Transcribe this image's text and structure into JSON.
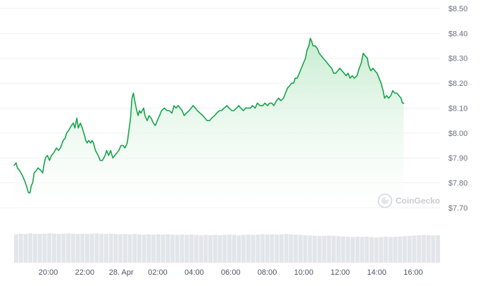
{
  "colors": {
    "line": "#16a34a",
    "area_top": "#c4ebcd",
    "area_bottom": "#ffffff",
    "volume": "#e2e5e9",
    "watermark": "#d3d6db"
  },
  "watermark": {
    "text": "CoinGecko",
    "icon": "coingecko-logo-icon"
  },
  "chart_data": {
    "type": "area",
    "x_format": "hours since start of the 20:00 tick (27 Apr)",
    "ylim": [
      7.68,
      8.5
    ],
    "y_ticks": [
      {
        "value": 8.5,
        "label": "$8.50"
      },
      {
        "value": 8.4,
        "label": "$8.40"
      },
      {
        "value": 8.3,
        "label": "$8.30"
      },
      {
        "value": 8.2,
        "label": "$8.20"
      },
      {
        "value": 8.1,
        "label": "$8.10"
      },
      {
        "value": 8.0,
        "label": "$8.00"
      },
      {
        "value": 7.9,
        "label": "$7.90"
      },
      {
        "value": 7.8,
        "label": "$7.80"
      },
      {
        "value": 7.7,
        "label": "$7.70"
      }
    ],
    "x_ticks": [
      {
        "value": 0,
        "label": "20:00"
      },
      {
        "value": 2,
        "label": "22:00"
      },
      {
        "value": 4,
        "label": "28. Apr"
      },
      {
        "value": 6,
        "label": "02:00"
      },
      {
        "value": 8,
        "label": "04:00"
      },
      {
        "value": 10,
        "label": "06:00"
      },
      {
        "value": 12,
        "label": "08:00"
      },
      {
        "value": 14,
        "label": "10:00"
      },
      {
        "value": 16,
        "label": "12:00"
      },
      {
        "value": 18,
        "label": "14:00"
      },
      {
        "value": 20,
        "label": "16:00"
      }
    ],
    "xlim": [
      -1.87,
      21.5
    ],
    "series": [
      {
        "points": [
          [
            -1.87,
            7.87
          ],
          [
            -1.76,
            7.88
          ],
          [
            -1.69,
            7.86
          ],
          [
            -1.57,
            7.85
          ],
          [
            -1.42,
            7.83
          ],
          [
            -1.3,
            7.81
          ],
          [
            -1.2,
            7.79
          ],
          [
            -1.08,
            7.76
          ],
          [
            -1.0,
            7.76
          ],
          [
            -0.92,
            7.79
          ],
          [
            -0.85,
            7.8
          ],
          [
            -0.77,
            7.84
          ],
          [
            -0.64,
            7.85
          ],
          [
            -0.56,
            7.86
          ],
          [
            -0.41,
            7.85
          ],
          [
            -0.3,
            7.84
          ],
          [
            -0.24,
            7.87
          ],
          [
            -0.15,
            7.9
          ],
          [
            -0.04,
            7.91
          ],
          [
            0.07,
            7.89
          ],
          [
            0.18,
            7.91
          ],
          [
            0.3,
            7.92
          ],
          [
            0.45,
            7.94
          ],
          [
            0.56,
            7.93
          ],
          [
            0.67,
            7.94
          ],
          [
            0.82,
            7.97
          ],
          [
            0.93,
            7.98
          ],
          [
            1.01,
            8.0
          ],
          [
            1.12,
            8.01
          ],
          [
            1.27,
            8.03
          ],
          [
            1.38,
            8.04
          ],
          [
            1.46,
            8.02
          ],
          [
            1.57,
            8.06
          ],
          [
            1.65,
            8.02
          ],
          [
            1.76,
            8.04
          ],
          [
            1.87,
            8.02
          ],
          [
            1.99,
            7.99
          ],
          [
            2.06,
            7.97
          ],
          [
            2.14,
            7.96
          ],
          [
            2.21,
            7.97
          ],
          [
            2.33,
            7.96
          ],
          [
            2.4,
            7.97
          ],
          [
            2.48,
            7.96
          ],
          [
            2.59,
            7.93
          ],
          [
            2.74,
            7.91
          ],
          [
            2.85,
            7.89
          ],
          [
            2.97,
            7.89
          ],
          [
            3.12,
            7.91
          ],
          [
            3.2,
            7.93
          ],
          [
            3.31,
            7.91
          ],
          [
            3.42,
            7.93
          ],
          [
            3.54,
            7.9
          ],
          [
            3.65,
            7.91
          ],
          [
            3.76,
            7.92
          ],
          [
            3.87,
            7.93
          ],
          [
            3.99,
            7.95
          ],
          [
            4.1,
            7.95
          ],
          [
            4.21,
            7.94
          ],
          [
            4.33,
            7.96
          ],
          [
            4.44,
            8.02
          ],
          [
            4.51,
            8.06
          ],
          [
            4.59,
            8.14
          ],
          [
            4.67,
            8.16
          ],
          [
            4.74,
            8.13
          ],
          [
            4.85,
            8.09
          ],
          [
            4.93,
            8.07
          ],
          [
            5.0,
            8.09
          ],
          [
            5.08,
            8.08
          ],
          [
            5.15,
            8.09
          ],
          [
            5.23,
            8.1
          ],
          [
            5.3,
            8.07
          ],
          [
            5.42,
            8.05
          ],
          [
            5.53,
            8.07
          ],
          [
            5.64,
            8.06
          ],
          [
            5.76,
            8.04
          ],
          [
            5.87,
            8.03
          ],
          [
            5.98,
            8.05
          ],
          [
            6.1,
            8.07
          ],
          [
            6.21,
            8.09
          ],
          [
            6.36,
            8.1
          ],
          [
            6.51,
            8.09
          ],
          [
            6.63,
            8.09
          ],
          [
            6.78,
            8.08
          ],
          [
            6.89,
            8.11
          ],
          [
            7.0,
            8.1
          ],
          [
            7.12,
            8.11
          ],
          [
            7.23,
            8.1
          ],
          [
            7.34,
            8.09
          ],
          [
            7.45,
            8.07
          ],
          [
            7.57,
            8.08
          ],
          [
            7.72,
            8.09
          ],
          [
            7.83,
            8.1
          ],
          [
            7.94,
            8.11
          ],
          [
            8.06,
            8.1
          ],
          [
            8.17,
            8.09
          ],
          [
            8.32,
            8.08
          ],
          [
            8.47,
            8.07
          ],
          [
            8.59,
            8.06
          ],
          [
            8.7,
            8.05
          ],
          [
            8.85,
            8.05
          ],
          [
            8.96,
            8.06
          ],
          [
            9.12,
            8.07
          ],
          [
            9.23,
            8.08
          ],
          [
            9.38,
            8.09
          ],
          [
            9.49,
            8.09
          ],
          [
            9.64,
            8.1
          ],
          [
            9.79,
            8.11
          ],
          [
            9.91,
            8.1
          ],
          [
            10.06,
            8.09
          ],
          [
            10.17,
            8.09
          ],
          [
            10.32,
            8.1
          ],
          [
            10.44,
            8.11
          ],
          [
            10.55,
            8.1
          ],
          [
            10.7,
            8.09
          ],
          [
            10.81,
            8.1
          ],
          [
            10.96,
            8.1
          ],
          [
            11.08,
            8.1
          ],
          [
            11.19,
            8.11
          ],
          [
            11.34,
            8.1
          ],
          [
            11.46,
            8.12
          ],
          [
            11.61,
            8.11
          ],
          [
            11.76,
            8.11
          ],
          [
            11.87,
            8.12
          ],
          [
            12.02,
            8.11
          ],
          [
            12.13,
            8.12
          ],
          [
            12.25,
            8.12
          ],
          [
            12.36,
            8.11
          ],
          [
            12.51,
            8.13
          ],
          [
            12.62,
            8.14
          ],
          [
            12.74,
            8.13
          ],
          [
            12.89,
            8.14
          ],
          [
            13.0,
            8.16
          ],
          [
            13.11,
            8.18
          ],
          [
            13.23,
            8.19
          ],
          [
            13.34,
            8.2
          ],
          [
            13.45,
            8.2
          ],
          [
            13.53,
            8.22
          ],
          [
            13.64,
            8.22
          ],
          [
            13.76,
            8.24
          ],
          [
            13.87,
            8.26
          ],
          [
            13.98,
            8.28
          ],
          [
            14.1,
            8.3
          ],
          [
            14.17,
            8.33
          ],
          [
            14.28,
            8.35
          ],
          [
            14.36,
            8.38
          ],
          [
            14.43,
            8.37
          ],
          [
            14.51,
            8.35
          ],
          [
            14.62,
            8.35
          ],
          [
            14.74,
            8.34
          ],
          [
            14.85,
            8.32
          ],
          [
            14.96,
            8.31
          ],
          [
            15.07,
            8.3
          ],
          [
            15.19,
            8.29
          ],
          [
            15.3,
            8.28
          ],
          [
            15.41,
            8.27
          ],
          [
            15.53,
            8.26
          ],
          [
            15.64,
            8.24
          ],
          [
            15.75,
            8.24
          ],
          [
            15.87,
            8.25
          ],
          [
            15.98,
            8.26
          ],
          [
            16.09,
            8.25
          ],
          [
            16.21,
            8.24
          ],
          [
            16.32,
            8.23
          ],
          [
            16.43,
            8.24
          ],
          [
            16.54,
            8.22
          ],
          [
            16.66,
            8.23
          ],
          [
            16.77,
            8.22
          ],
          [
            16.92,
            8.23
          ],
          [
            17.04,
            8.26
          ],
          [
            17.15,
            8.28
          ],
          [
            17.26,
            8.32
          ],
          [
            17.37,
            8.31
          ],
          [
            17.49,
            8.3
          ],
          [
            17.56,
            8.27
          ],
          [
            17.68,
            8.25
          ],
          [
            17.79,
            8.26
          ],
          [
            17.9,
            8.25
          ],
          [
            18.02,
            8.24
          ],
          [
            18.13,
            8.22
          ],
          [
            18.24,
            8.2
          ],
          [
            18.35,
            8.17
          ],
          [
            18.43,
            8.14
          ],
          [
            18.54,
            8.15
          ],
          [
            18.66,
            8.14
          ],
          [
            18.77,
            8.15
          ],
          [
            18.88,
            8.17
          ],
          [
            18.99,
            8.16
          ],
          [
            19.11,
            8.16
          ],
          [
            19.22,
            8.15
          ],
          [
            19.33,
            8.14
          ],
          [
            19.41,
            8.12
          ],
          [
            19.48,
            8.12
          ]
        ]
      }
    ],
    "volume": [
      0.94,
      0.96,
      0.95,
      0.97,
      0.96,
      0.95,
      0.96,
      0.97,
      0.96,
      0.95,
      0.96,
      0.97,
      0.96,
      0.95,
      0.96,
      0.95,
      0.96,
      0.97,
      0.96,
      0.95,
      0.96,
      0.95,
      0.94,
      0.95,
      0.94,
      0.95,
      0.94,
      0.93,
      0.94,
      0.93,
      0.94,
      0.93,
      0.94,
      0.93,
      0.92,
      0.93,
      0.92,
      0.93,
      0.92,
      0.91,
      0.92,
      0.91,
      0.92,
      0.91,
      0.92,
      0.93,
      0.92,
      0.91,
      0.92,
      0.93,
      0.92,
      0.93,
      0.94,
      0.93,
      0.94,
      0.93,
      0.94,
      0.95,
      0.94,
      0.93,
      0.92,
      0.91,
      0.9,
      0.89,
      0.88,
      0.89,
      0.9,
      0.89,
      0.88,
      0.87,
      0.86,
      0.85,
      0.86,
      0.85,
      0.86,
      0.85,
      0.84,
      0.85,
      0.86,
      0.85,
      0.86,
      0.87,
      0.88,
      0.89,
      0.9,
      0.91,
      0.92,
      0.91,
      0.9,
      0.91
    ]
  }
}
